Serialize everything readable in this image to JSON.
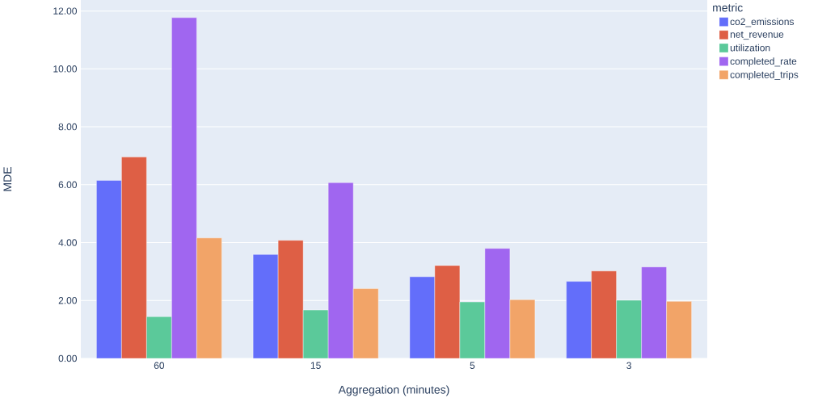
{
  "chart_data": {
    "type": "bar",
    "xlabel": "Aggregation (minutes)",
    "ylabel": "MDE",
    "legend_title": "metric",
    "categories": [
      "60",
      "15",
      "5",
      "3"
    ],
    "series": [
      {
        "name": "co2_emissions",
        "color": "#636efa",
        "values": [
          6.15,
          3.59,
          2.82,
          2.66
        ]
      },
      {
        "name": "net_revenue",
        "color": "#de5f45",
        "values": [
          6.96,
          4.08,
          3.21,
          3.02
        ]
      },
      {
        "name": "utilization",
        "color": "#5bc99a",
        "values": [
          1.44,
          1.67,
          1.95,
          2.01
        ]
      },
      {
        "name": "completed_rate",
        "color": "#a066f0",
        "values": [
          11.77,
          6.07,
          3.8,
          3.16
        ]
      },
      {
        "name": "completed_trips",
        "color": "#f2a468",
        "values": [
          4.16,
          2.41,
          2.03,
          1.97
        ]
      }
    ],
    "ylim": [
      0,
      12.38
    ],
    "yticks": [
      {
        "value": 0,
        "label": "0.00"
      },
      {
        "value": 2,
        "label": "2.00"
      },
      {
        "value": 4,
        "label": "4.00"
      },
      {
        "value": 6,
        "label": "6.00"
      },
      {
        "value": 8,
        "label": "8.00"
      },
      {
        "value": 10,
        "label": "10.00"
      },
      {
        "value": 12,
        "label": "12.00"
      }
    ],
    "grid": "y",
    "legend": "top right"
  }
}
